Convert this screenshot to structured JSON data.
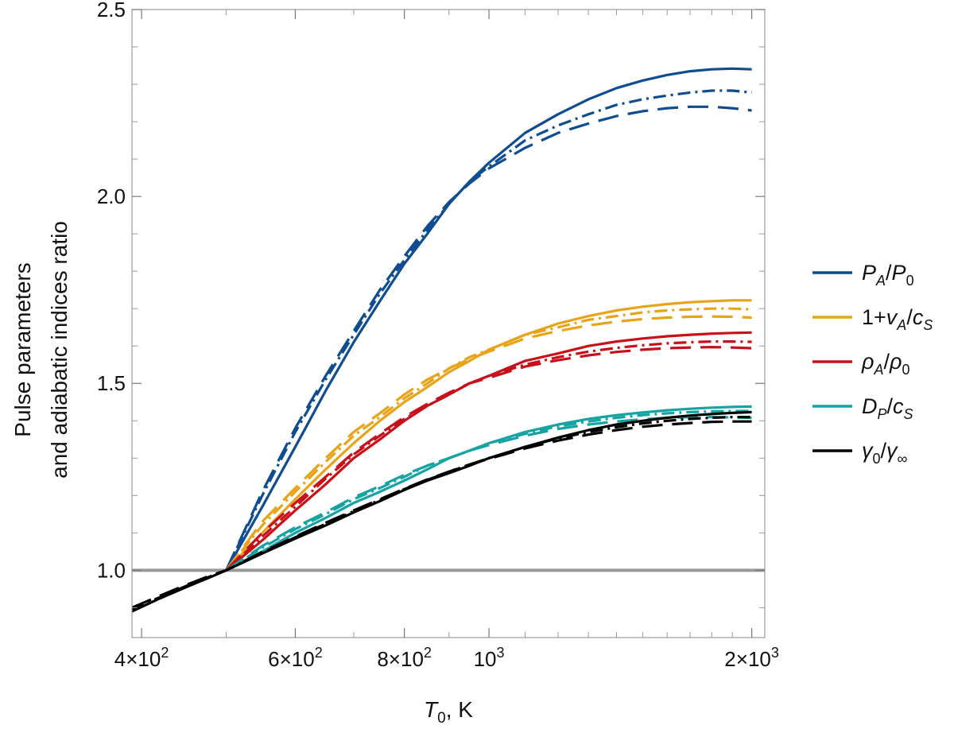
{
  "chart_data": {
    "type": "line",
    "x_scale": "log",
    "xlim": [
      390,
      2070
    ],
    "ylim": [
      0.82,
      2.5
    ],
    "xlabel": {
      "main": "T",
      "sub": "0",
      "rest": ", K"
    },
    "ylabel_line1": "Pulse parameters",
    "ylabel_line2": "and adiabatic indices ratio",
    "x_ticks": [
      {
        "value": 400,
        "mantissa": "4",
        "exponent": "2"
      },
      {
        "value": 600,
        "mantissa": "6",
        "exponent": "2"
      },
      {
        "value": 800,
        "mantissa": "8",
        "exponent": "2"
      },
      {
        "value": 1000,
        "mantissa": "",
        "exponent": "3"
      },
      {
        "value": 2000,
        "mantissa": "2",
        "exponent": "3"
      }
    ],
    "x_minor_ticks": [
      500,
      700,
      900,
      1100,
      1200,
      1300,
      1400,
      1500,
      1600,
      1700,
      1800,
      1900
    ],
    "y_ticks": [
      {
        "value": 1.0,
        "label": "1.0"
      },
      {
        "value": 1.5,
        "label": "1.5"
      },
      {
        "value": 2.0,
        "label": "2.0"
      },
      {
        "value": 2.5,
        "label": "2.5"
      }
    ],
    "y_minor_ticks": [
      0.9,
      1.1,
      1.2,
      1.3,
      1.4,
      1.6,
      1.7,
      1.8,
      1.9,
      2.1,
      2.2,
      2.3,
      2.4
    ],
    "reference_line": {
      "y": 1.0,
      "color": "#999999"
    },
    "line_styles": [
      "solid",
      "dash-dot",
      "long-dash"
    ],
    "series": [
      {
        "name": "P_A/P_0",
        "legend": [
          {
            "t": "P",
            "i": true
          },
          {
            "t": "A",
            "sub": true,
            "i": true
          },
          {
            "t": "/"
          },
          {
            "t": "P",
            "i": true
          },
          {
            "t": "0",
            "sub": true
          }
        ],
        "color": "#0f4c90",
        "variants": [
          {
            "style": "solid",
            "x": [
              500,
              550,
              600,
              650,
              700,
              750,
              800,
              850,
              900,
              950,
              1000,
              1100,
              1200,
              1300,
              1400,
              1500,
              1600,
              1700,
              1800,
              1900,
              2000
            ],
            "y": [
              1.0,
              1.17,
              1.33,
              1.48,
              1.61,
              1.72,
              1.82,
              1.9,
              1.98,
              2.04,
              2.09,
              2.17,
              2.22,
              2.26,
              2.29,
              2.31,
              2.325,
              2.335,
              2.34,
              2.342,
              2.34
            ]
          },
          {
            "style": "dash-dot",
            "x": [
              500,
              550,
              600,
              650,
              700,
              750,
              800,
              850,
              900,
              950,
              1000,
              1100,
              1200,
              1300,
              1400,
              1500,
              1600,
              1700,
              1800,
              1900,
              2000
            ],
            "y": [
              1.0,
              1.2,
              1.37,
              1.51,
              1.63,
              1.74,
              1.83,
              1.91,
              1.98,
              2.04,
              2.08,
              2.15,
              2.19,
              2.22,
              2.245,
              2.26,
              2.27,
              2.278,
              2.283,
              2.283,
              2.278
            ]
          },
          {
            "style": "long-dash",
            "x": [
              500,
              550,
              600,
              650,
              700,
              750,
              800,
              850,
              900,
              950,
              1000,
              1100,
              1200,
              1300,
              1400,
              1500,
              1600,
              1700,
              1800,
              1900,
              2000
            ],
            "y": [
              1.0,
              1.21,
              1.38,
              1.52,
              1.64,
              1.75,
              1.84,
              1.92,
              1.985,
              2.035,
              2.075,
              2.13,
              2.17,
              2.195,
              2.215,
              2.228,
              2.236,
              2.24,
              2.24,
              2.236,
              2.23
            ]
          }
        ]
      },
      {
        "name": "1+v_A/c_S",
        "legend": [
          {
            "t": "1+"
          },
          {
            "t": "v",
            "i": true
          },
          {
            "t": "A",
            "sub": true,
            "i": true
          },
          {
            "t": "/"
          },
          {
            "t": "c",
            "i": true
          },
          {
            "t": "S",
            "sub": true,
            "i": true
          }
        ],
        "color": "#e8a317",
        "variants": [
          {
            "style": "solid",
            "x": [
              500,
              550,
              600,
              650,
              700,
              750,
              800,
              850,
              900,
              950,
              1000,
              1100,
              1200,
              1300,
              1400,
              1500,
              1600,
              1700,
              1800,
              1900,
              2000
            ],
            "y": [
              1.0,
              1.1,
              1.19,
              1.27,
              1.34,
              1.4,
              1.45,
              1.49,
              1.53,
              1.56,
              1.59,
              1.63,
              1.66,
              1.68,
              1.695,
              1.705,
              1.712,
              1.717,
              1.72,
              1.722,
              1.722
            ]
          },
          {
            "style": "dash-dot",
            "x": [
              500,
              550,
              600,
              650,
              700,
              750,
              800,
              850,
              900,
              950,
              1000,
              1100,
              1200,
              1300,
              1400,
              1500,
              1600,
              1700,
              1800,
              1900,
              2000
            ],
            "y": [
              1.0,
              1.12,
              1.21,
              1.29,
              1.36,
              1.41,
              1.46,
              1.5,
              1.54,
              1.57,
              1.59,
              1.63,
              1.65,
              1.67,
              1.68,
              1.69,
              1.695,
              1.698,
              1.7,
              1.7,
              1.698
            ]
          },
          {
            "style": "long-dash",
            "x": [
              500,
              550,
              600,
              650,
              700,
              750,
              800,
              850,
              900,
              950,
              1000,
              1100,
              1200,
              1300,
              1400,
              1500,
              1600,
              1700,
              1800,
              1900,
              2000
            ],
            "y": [
              1.0,
              1.13,
              1.22,
              1.3,
              1.37,
              1.42,
              1.47,
              1.51,
              1.54,
              1.565,
              1.585,
              1.62,
              1.64,
              1.655,
              1.665,
              1.672,
              1.676,
              1.678,
              1.679,
              1.678,
              1.676
            ]
          }
        ]
      },
      {
        "name": "rho_A/rho_0",
        "legend": [
          {
            "t": "ρ",
            "i": true
          },
          {
            "t": "A",
            "sub": true,
            "i": true
          },
          {
            "t": "/"
          },
          {
            "t": "ρ",
            "i": true
          },
          {
            "t": "0",
            "sub": true
          }
        ],
        "color": "#c8101a",
        "variants": [
          {
            "style": "solid",
            "x": [
              500,
              550,
              600,
              650,
              700,
              750,
              800,
              850,
              900,
              950,
              1000,
              1100,
              1200,
              1300,
              1400,
              1500,
              1600,
              1700,
              1800,
              1900,
              2000
            ],
            "y": [
              1.0,
              1.08,
              1.16,
              1.23,
              1.3,
              1.35,
              1.4,
              1.44,
              1.47,
              1.5,
              1.52,
              1.56,
              1.58,
              1.6,
              1.612,
              1.62,
              1.626,
              1.63,
              1.633,
              1.635,
              1.636
            ]
          },
          {
            "style": "dash-dot",
            "x": [
              500,
              550,
              600,
              650,
              700,
              750,
              800,
              850,
              900,
              950,
              1000,
              1100,
              1200,
              1300,
              1400,
              1500,
              1600,
              1700,
              1800,
              1900,
              2000
            ],
            "y": [
              1.0,
              1.09,
              1.17,
              1.245,
              1.31,
              1.36,
              1.405,
              1.44,
              1.47,
              1.5,
              1.52,
              1.55,
              1.57,
              1.585,
              1.595,
              1.602,
              1.607,
              1.61,
              1.612,
              1.612,
              1.611
            ]
          },
          {
            "style": "long-dash",
            "x": [
              500,
              550,
              600,
              650,
              700,
              750,
              800,
              850,
              900,
              950,
              1000,
              1100,
              1200,
              1300,
              1400,
              1500,
              1600,
              1700,
              1800,
              1900,
              2000
            ],
            "y": [
              1.0,
              1.1,
              1.18,
              1.25,
              1.315,
              1.365,
              1.41,
              1.445,
              1.475,
              1.5,
              1.515,
              1.545,
              1.562,
              1.575,
              1.584,
              1.59,
              1.594,
              1.596,
              1.597,
              1.596,
              1.594
            ]
          }
        ]
      },
      {
        "name": "D_P/c_S",
        "legend": [
          {
            "t": "D",
            "i": true
          },
          {
            "t": "P",
            "sub": true,
            "i": true
          },
          {
            "t": "/"
          },
          {
            "t": "c",
            "i": true
          },
          {
            "t": "S",
            "sub": true,
            "i": true
          }
        ],
        "color": "#16a3a3",
        "variants": [
          {
            "style": "solid",
            "x": [
              500,
              550,
              600,
              650,
              700,
              750,
              800,
              850,
              900,
              950,
              1000,
              1100,
              1200,
              1300,
              1400,
              1500,
              1600,
              1700,
              1800,
              1900,
              2000
            ],
            "y": [
              1.0,
              1.05,
              1.1,
              1.14,
              1.18,
              1.21,
              1.24,
              1.27,
              1.3,
              1.32,
              1.34,
              1.37,
              1.39,
              1.405,
              1.415,
              1.422,
              1.428,
              1.432,
              1.435,
              1.437,
              1.438
            ]
          },
          {
            "style": "dash-dot",
            "x": [
              500,
              550,
              600,
              650,
              700,
              750,
              800,
              850,
              900,
              950,
              1000,
              1100,
              1200,
              1300,
              1400,
              1500,
              1600,
              1700,
              1800,
              1900,
              2000
            ],
            "y": [
              1.0,
              1.06,
              1.11,
              1.15,
              1.19,
              1.22,
              1.25,
              1.28,
              1.3,
              1.32,
              1.34,
              1.365,
              1.385,
              1.398,
              1.408,
              1.415,
              1.42,
              1.423,
              1.425,
              1.426,
              1.426
            ]
          },
          {
            "style": "long-dash",
            "x": [
              500,
              550,
              600,
              650,
              700,
              750,
              800,
              850,
              900,
              950,
              1000,
              1100,
              1200,
              1300,
              1400,
              1500,
              1600,
              1700,
              1800,
              1900,
              2000
            ],
            "y": [
              1.0,
              1.065,
              1.115,
              1.155,
              1.195,
              1.225,
              1.255,
              1.28,
              1.3,
              1.32,
              1.335,
              1.36,
              1.378,
              1.39,
              1.398,
              1.404,
              1.408,
              1.41,
              1.41,
              1.409,
              1.408
            ]
          }
        ]
      },
      {
        "name": "gamma_0/gamma_inf",
        "legend": [
          {
            "t": "γ",
            "i": true
          },
          {
            "t": "0",
            "sub": true
          },
          {
            "t": "/"
          },
          {
            "t": "γ",
            "i": true
          },
          {
            "t": "∞",
            "sub": true
          }
        ],
        "color": "#000000",
        "variants": [
          {
            "style": "solid",
            "x": [
              390,
              420,
              450,
              480,
              500,
              550,
              600,
              650,
              700,
              750,
              800,
              850,
              900,
              950,
              1000,
              1100,
              1200,
              1300,
              1400,
              1500,
              1600,
              1700,
              1800,
              1900,
              2000
            ],
            "y": [
              0.89,
              0.925,
              0.955,
              0.982,
              1.0,
              1.045,
              1.085,
              1.12,
              1.155,
              1.185,
              1.215,
              1.24,
              1.26,
              1.28,
              1.3,
              1.33,
              1.355,
              1.375,
              1.39,
              1.4,
              1.408,
              1.414,
              1.418,
              1.421,
              1.423
            ]
          },
          {
            "style": "dash-dot",
            "x": [
              390,
              420,
              450,
              480,
              500,
              550,
              600,
              650,
              700,
              750,
              800,
              850,
              900,
              950,
              1000,
              1100,
              1200,
              1300,
              1400,
              1500,
              1600,
              1700,
              1800,
              1900,
              2000
            ],
            "y": [
              0.895,
              0.928,
              0.958,
              0.984,
              1.0,
              1.047,
              1.088,
              1.124,
              1.158,
              1.188,
              1.217,
              1.242,
              1.263,
              1.283,
              1.3,
              1.33,
              1.353,
              1.37,
              1.383,
              1.393,
              1.4,
              1.405,
              1.408,
              1.41,
              1.41
            ]
          },
          {
            "style": "long-dash",
            "x": [
              390,
              420,
              450,
              480,
              500,
              550,
              600,
              650,
              700,
              750,
              800,
              850,
              900,
              950,
              1000,
              1100,
              1200,
              1300,
              1400,
              1500,
              1600,
              1700,
              1800,
              1900,
              2000
            ],
            "y": [
              0.9,
              0.932,
              0.961,
              0.986,
              1.0,
              1.049,
              1.09,
              1.127,
              1.16,
              1.19,
              1.218,
              1.243,
              1.264,
              1.283,
              1.298,
              1.326,
              1.347,
              1.363,
              1.375,
              1.384,
              1.39,
              1.394,
              1.397,
              1.398,
              1.398
            ]
          }
        ]
      }
    ]
  }
}
